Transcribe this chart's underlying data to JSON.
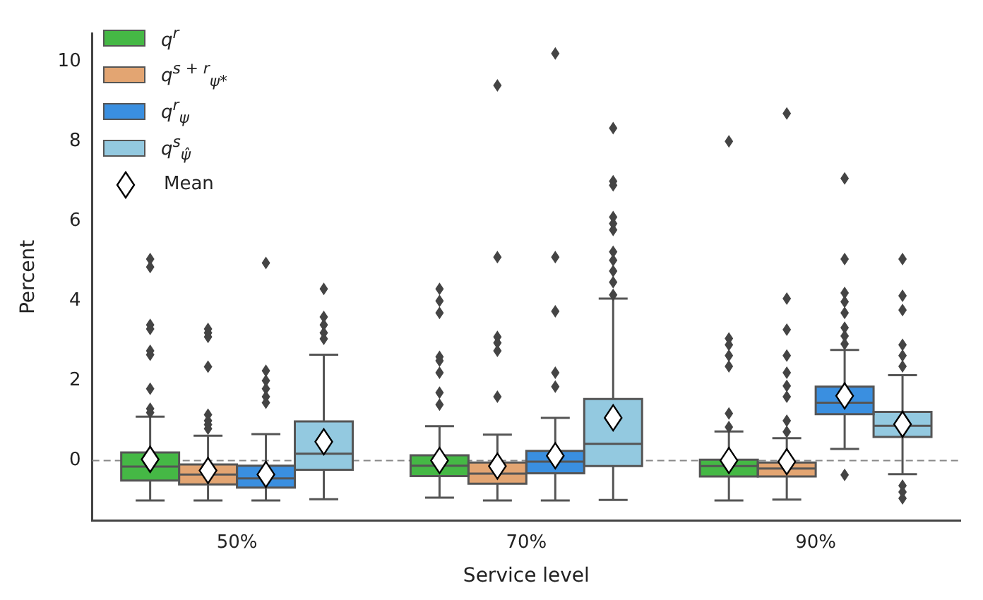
{
  "chart_data": {
    "type": "box",
    "xlabel": "Service level",
    "ylabel": "Percent",
    "categories": [
      "50%",
      "70%",
      "90%"
    ],
    "ylim": [
      -1.5,
      10.7
    ],
    "yticks": [
      0,
      2,
      4,
      6,
      8,
      10
    ],
    "legend": "top left",
    "annotations": [
      "Mean"
    ],
    "ref_lines": [
      {
        "axis": "y",
        "value": 0,
        "color": "#888888",
        "line_style": "dashed"
      }
    ],
    "series": [
      {
        "name": "q$^{r}$",
        "color": "#45b845",
        "boxes": [
          {
            "low": -1.0,
            "q1": -0.5,
            "median": -0.15,
            "q3": 0.2,
            "high": 1.1,
            "mean": 0.03,
            "outliers": [
              5.05,
              4.85,
              3.4,
              3.3,
              2.75,
              2.65,
              1.8,
              1.3,
              1.2
            ]
          },
          {
            "low": -0.93,
            "q1": -0.39,
            "median": -0.13,
            "q3": 0.13,
            "high": 0.86,
            "mean": 0.0,
            "outliers": [
              4.3,
              4.0,
              3.7,
              2.6,
              2.5,
              2.2,
              1.7,
              1.4
            ]
          },
          {
            "low": -1.0,
            "q1": -0.4,
            "median": -0.14,
            "q3": 0.02,
            "high": 0.73,
            "mean": 0.0,
            "outliers": [
              8.0,
              3.06,
              2.9,
              2.63,
              2.36,
              1.18,
              0.84
            ]
          }
        ]
      },
      {
        "name": "q$^{s + r}$$_{ψ*}$",
        "color": "#e3a572",
        "boxes": [
          {
            "low": -1.0,
            "q1": -0.6,
            "median": -0.35,
            "q3": -0.1,
            "high": 0.62,
            "mean": -0.25,
            "outliers": [
              3.3,
              3.2,
              3.1,
              2.35,
              1.15,
              1.0,
              0.9,
              0.8
            ]
          },
          {
            "low": -1.0,
            "q1": -0.58,
            "median": -0.33,
            "q3": -0.05,
            "high": 0.65,
            "mean": -0.14,
            "outliers": [
              9.4,
              5.1,
              3.1,
              2.95,
              2.75,
              1.6
            ]
          },
          {
            "low": -0.98,
            "q1": -0.4,
            "median": -0.2,
            "q3": -0.05,
            "high": 0.56,
            "mean": -0.03,
            "outliers": [
              8.7,
              4.06,
              3.28,
              2.63,
              2.2,
              1.87,
              1.6,
              1.0,
              0.72
            ]
          }
        ]
      },
      {
        "name": "q$^{r}$$_{ψ}$",
        "color": "#3a8fe0",
        "boxes": [
          {
            "low": -1.0,
            "q1": -0.68,
            "median": -0.45,
            "q3": -0.13,
            "high": 0.66,
            "mean": -0.35,
            "outliers": [
              4.95,
              2.25,
              2.0,
              1.8,
              1.6,
              1.45
            ]
          },
          {
            "low": -1.0,
            "q1": -0.32,
            "median": -0.03,
            "q3": 0.24,
            "high": 1.07,
            "mean": 0.12,
            "outliers": [
              10.2,
              5.1,
              3.74,
              2.2,
              1.85
            ]
          },
          {
            "low": 0.29,
            "q1": 1.16,
            "median": 1.45,
            "q3": 1.85,
            "high": 2.77,
            "mean": 1.62,
            "outliers": [
              7.07,
              5.05,
              4.2,
              3.98,
              3.7,
              3.33,
              3.12,
              2.92,
              -0.36
            ]
          }
        ]
      },
      {
        "name": "q$^{s}$$_{ψ̂}$",
        "color": "#93c9e0",
        "boxes": [
          {
            "low": -0.97,
            "q1": -0.23,
            "median": 0.17,
            "q3": 0.98,
            "high": 2.65,
            "mean": 0.47,
            "outliers": [
              4.3,
              3.6,
              3.4,
              3.2,
              3.05
            ]
          },
          {
            "low": -0.99,
            "q1": -0.14,
            "median": 0.42,
            "q3": 1.54,
            "high": 4.06,
            "mean": 1.07,
            "outliers": [
              8.33,
              7.0,
              6.9,
              6.1,
              5.94,
              5.78,
              5.23,
              5.02,
              4.75,
              4.47,
              4.15
            ]
          },
          {
            "low": -0.34,
            "q1": 0.59,
            "median": 0.87,
            "q3": 1.22,
            "high": 2.14,
            "mean": 0.91,
            "outliers": [
              5.05,
              4.13,
              3.77,
              2.9,
              2.63,
              2.36,
              -0.63,
              -0.79,
              -0.95
            ]
          }
        ]
      }
    ]
  }
}
